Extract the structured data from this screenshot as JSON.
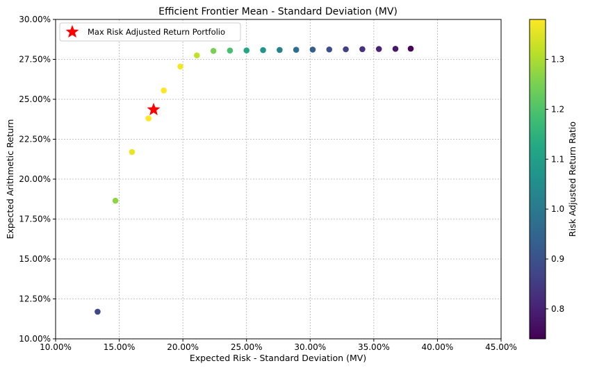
{
  "chart_data": {
    "type": "scatter",
    "title": "Efficient Frontier Mean - Standard Deviation (MV)",
    "xlabel": "Expected Risk - Standard Deviation (MV)",
    "ylabel": "Expected Arithmetic Return",
    "xlim": [
      0.1,
      0.45
    ],
    "ylim": [
      0.1,
      0.3
    ],
    "xticks": [
      0.1,
      0.15,
      0.2,
      0.25,
      0.3,
      0.35,
      0.4,
      0.45
    ],
    "xtick_labels": [
      "10.00%",
      "15.00%",
      "20.00%",
      "25.00%",
      "30.00%",
      "35.00%",
      "40.00%",
      "45.00%"
    ],
    "yticks": [
      0.1,
      0.125,
      0.15,
      0.175,
      0.2,
      0.225,
      0.25,
      0.275,
      0.3
    ],
    "ytick_labels": [
      "10.00%",
      "12.50%",
      "15.00%",
      "17.50%",
      "20.00%",
      "22.50%",
      "25.00%",
      "27.50%",
      "30.00%"
    ],
    "grid": true,
    "colormap": "viridis",
    "colorbar": {
      "label": "Risk Adjusted Return Ratio",
      "range": [
        0.74,
        1.38
      ],
      "ticks": [
        0.8,
        0.9,
        1.0,
        1.1,
        1.2,
        1.3
      ],
      "tick_labels": [
        "0.8",
        "0.9",
        "1.0",
        "1.1",
        "1.2",
        "1.3"
      ]
    },
    "points": [
      {
        "x": 0.133,
        "y": 0.117,
        "ratio": 0.88
      },
      {
        "x": 0.147,
        "y": 0.1865,
        "ratio": 1.27
      },
      {
        "x": 0.16,
        "y": 0.217,
        "ratio": 1.36
      },
      {
        "x": 0.173,
        "y": 0.238,
        "ratio": 1.38
      },
      {
        "x": 0.185,
        "y": 0.2555,
        "ratio": 1.38
      },
      {
        "x": 0.198,
        "y": 0.2705,
        "ratio": 1.37
      },
      {
        "x": 0.211,
        "y": 0.2775,
        "ratio": 1.32
      },
      {
        "x": 0.224,
        "y": 0.2803,
        "ratio": 1.25
      },
      {
        "x": 0.237,
        "y": 0.2805,
        "ratio": 1.19
      },
      {
        "x": 0.25,
        "y": 0.2806,
        "ratio": 1.12
      },
      {
        "x": 0.263,
        "y": 0.2808,
        "ratio": 1.07
      },
      {
        "x": 0.276,
        "y": 0.2809,
        "ratio": 1.02
      },
      {
        "x": 0.289,
        "y": 0.281,
        "ratio": 0.97
      },
      {
        "x": 0.302,
        "y": 0.2811,
        "ratio": 0.93
      },
      {
        "x": 0.315,
        "y": 0.2812,
        "ratio": 0.89
      },
      {
        "x": 0.328,
        "y": 0.2813,
        "ratio": 0.86
      },
      {
        "x": 0.341,
        "y": 0.2814,
        "ratio": 0.83
      },
      {
        "x": 0.354,
        "y": 0.2815,
        "ratio": 0.8
      },
      {
        "x": 0.367,
        "y": 0.2816,
        "ratio": 0.78
      },
      {
        "x": 0.379,
        "y": 0.2817,
        "ratio": 0.75
      }
    ],
    "highlight": {
      "name": "Max Risk Adjusted Return Portfolio",
      "x": 0.177,
      "y": 0.2435,
      "marker": "star",
      "color": "#ff0000"
    },
    "legend": {
      "placement": "top-left",
      "entries": [
        "Max Risk Adjusted Return Portfolio"
      ]
    }
  }
}
